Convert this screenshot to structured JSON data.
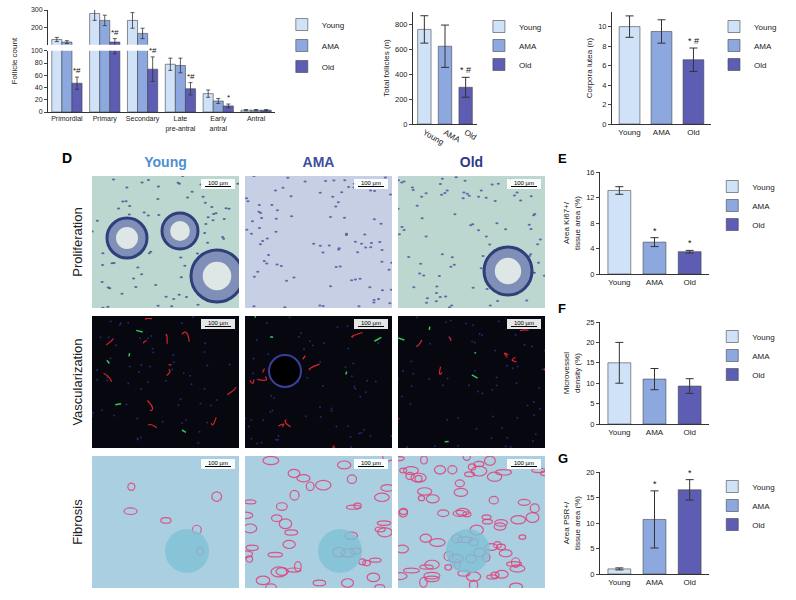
{
  "chart_data": [
    {
      "type": "bar",
      "y_label": "Follicle count",
      "categories": [
        "Primordial",
        "Primary",
        "Secondary",
        "Late pre-antral",
        "Early antral",
        "Antral"
      ],
      "series": [
        {
          "name": "Young",
          "color": "#cfe2f7",
          "values": [
            130,
            280,
            240,
            78,
            30,
            3
          ],
          "errors": [
            12,
            40,
            45,
            10,
            6,
            1
          ]
        },
        {
          "name": "AMA",
          "color": "#8da8df",
          "values": [
            115,
            240,
            165,
            76,
            18,
            3
          ],
          "errors": [
            8,
            30,
            30,
            12,
            4,
            1
          ]
        },
        {
          "name": "Old",
          "color": "#5c5db3",
          "values": [
            47,
            115,
            70,
            38,
            10,
            3
          ],
          "errors": [
            10,
            20,
            20,
            10,
            3,
            1
          ],
          "significance": [
            "*#",
            "*#",
            "*#",
            "*#",
            "*",
            null
          ]
        }
      ],
      "ylim": [
        0,
        300
      ],
      "yticks": [
        0,
        20,
        40,
        60,
        80,
        100,
        200,
        300
      ],
      "legend": "right",
      "grid": false
    },
    {
      "type": "bar",
      "y_label": "Total follicles (n)",
      "categories": [
        "Young",
        "AMA",
        "Old"
      ],
      "values": [
        760,
        625,
        295
      ],
      "errors": [
        110,
        170,
        80
      ],
      "significance": [
        null,
        null,
        "* #"
      ],
      "colors": [
        "#cfe2f7",
        "#8da8df",
        "#5c5db3"
      ],
      "ylim": [
        0,
        900
      ],
      "yticks": [
        0,
        200,
        400,
        600,
        800
      ],
      "legend": "right",
      "grid": false
    },
    {
      "type": "bar",
      "y_label": "Corpora lutea (n)",
      "categories": [
        "Young",
        "AMA",
        "Old"
      ],
      "values": [
        10,
        9.5,
        6.6
      ],
      "errors": [
        1.1,
        1.2,
        1.2
      ],
      "significance": [
        null,
        null,
        "* #"
      ],
      "colors": [
        "#cfe2f7",
        "#8da8df",
        "#5c5db3"
      ],
      "ylim": [
        0,
        11.5
      ],
      "yticks": [
        0,
        2,
        4,
        6,
        8,
        10
      ],
      "legend": "right",
      "grid": false
    },
    {
      "type": "bar",
      "panel": "E",
      "y_label": "Area Ki67+/ tissue area (%)",
      "categories": [
        "Young",
        "AMA",
        "Old"
      ],
      "values": [
        13.1,
        5.0,
        3.5
      ],
      "errors": [
        0.6,
        0.7,
        0.2
      ],
      "significance": [
        null,
        "*",
        "*"
      ],
      "colors": [
        "#cfe2f7",
        "#8da8df",
        "#5c5db3"
      ],
      "ylim": [
        0,
        16
      ],
      "yticks": [
        0,
        4,
        8,
        12,
        16
      ],
      "legend": "right",
      "grid": false
    },
    {
      "type": "bar",
      "panel": "F",
      "y_label": "Microvessel density (%)",
      "categories": [
        "Young",
        "AMA",
        "Old"
      ],
      "values": [
        15,
        11,
        9.3
      ],
      "errors": [
        5,
        2.6,
        1.8
      ],
      "colors": [
        "#cfe2f7",
        "#8da8df",
        "#5c5db3"
      ],
      "ylim": [
        0,
        25
      ],
      "yticks": [
        0,
        5,
        10,
        15,
        20,
        25
      ],
      "legend": "right",
      "grid": false
    },
    {
      "type": "bar",
      "panel": "G",
      "y_label": "Area PSR+/ tissue area (%)",
      "categories": [
        "Young",
        "AMA",
        "Old"
      ],
      "values": [
        1,
        10.7,
        16.5
      ],
      "errors": [
        0.2,
        5.6,
        2
      ],
      "significance": [
        null,
        "*",
        "*"
      ],
      "colors": [
        "#cfe2f7",
        "#8da8df",
        "#5c5db3"
      ],
      "ylim": [
        0,
        20
      ],
      "yticks": [
        0,
        5,
        10,
        15,
        20
      ],
      "legend": "right",
      "grid": false
    }
  ],
  "image_panel": {
    "panel": "D",
    "columns": [
      "Young",
      "AMA",
      "Old"
    ],
    "column_colors": [
      "#4f8fd0",
      "#3d4f9e",
      "#2e3a87"
    ],
    "rows": [
      "Proliferation",
      "Vascularization",
      "Fibrosis"
    ],
    "scale_bar": "100 µm"
  }
}
